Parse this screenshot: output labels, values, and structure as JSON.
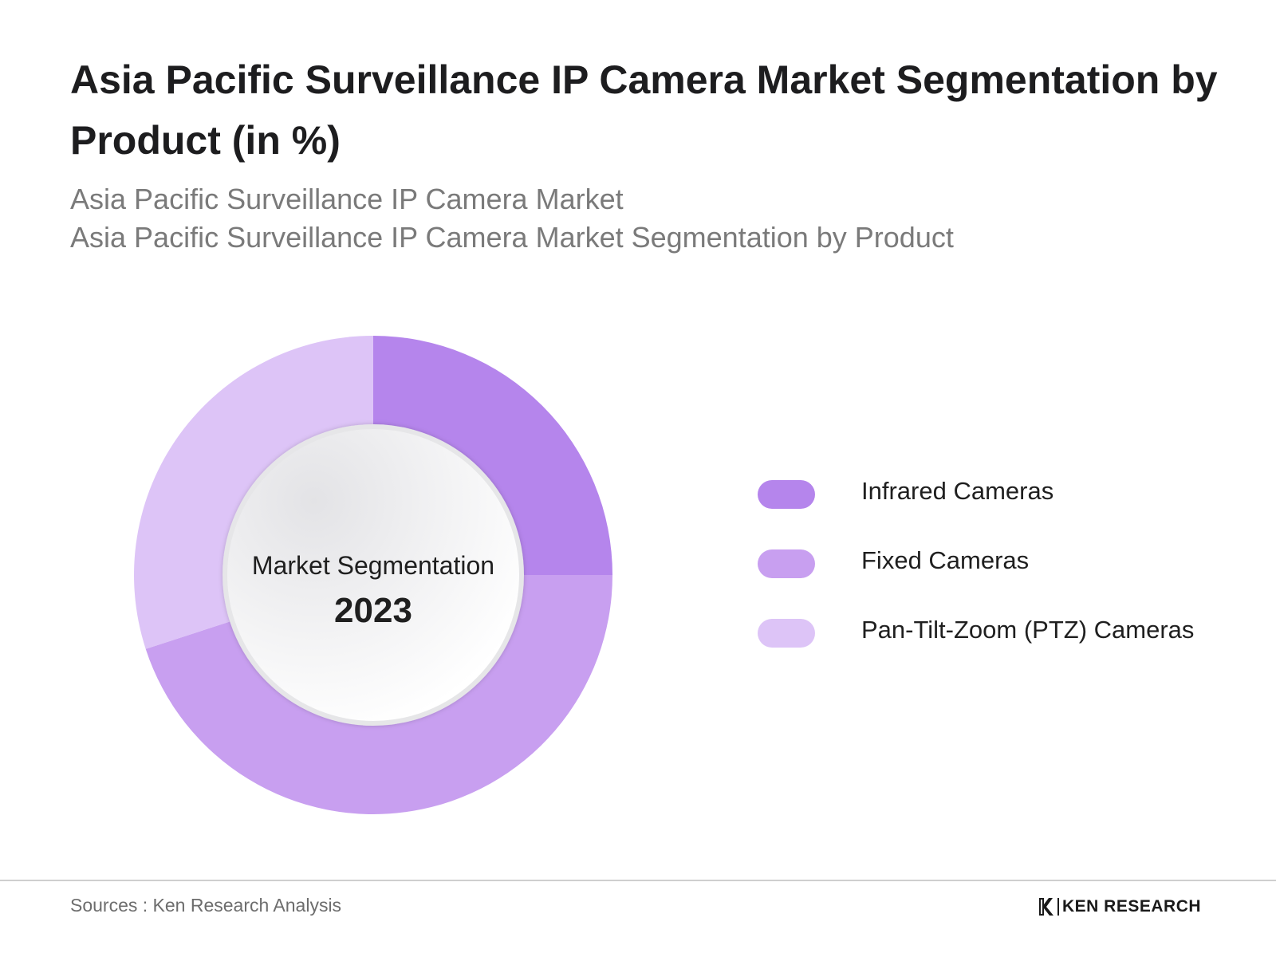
{
  "title": "Asia Pacific Surveillance IP Camera Market Segmentation by Product (in %)",
  "subtitle_line1": "Asia Pacific Surveillance IP Camera Market",
  "subtitle_line2": "Asia Pacific Surveillance IP Camera Market Segmentation by Product",
  "chart_data": {
    "type": "pie",
    "variant": "donut",
    "title": "Asia Pacific Surveillance IP Camera Market Segmentation by Product (in %)",
    "center_label": "Market Segmentation",
    "center_year": "2023",
    "legend_position": "right",
    "categories": [
      "Infrared Cameras",
      "Fixed Cameras",
      "Pan-Tilt-Zoom (PTZ) Cameras"
    ],
    "values": [
      25,
      45,
      30
    ],
    "colors": [
      "#b585ec",
      "#c89ff0",
      "#ddc4f7"
    ]
  },
  "footer": {
    "source": "Sources : Ken Research Analysis",
    "logo_text": "KEN RESEARCH",
    "logo_icon": "ken-research-k-icon"
  }
}
